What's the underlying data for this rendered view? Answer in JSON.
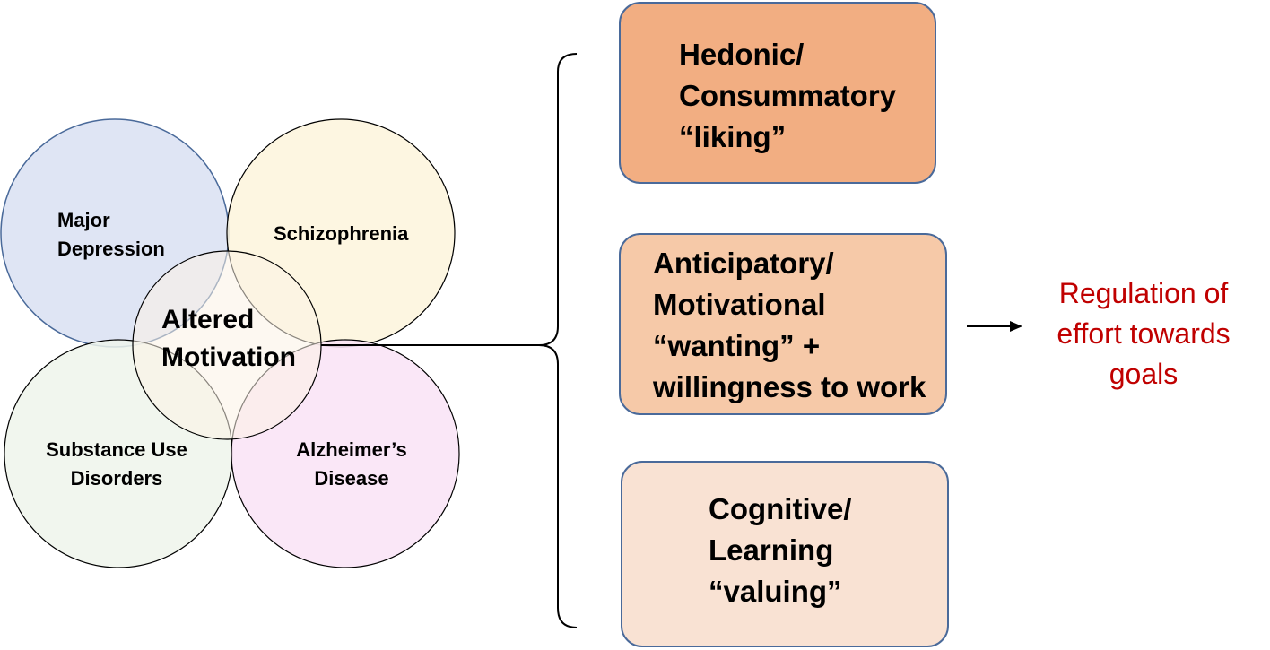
{
  "colors": {
    "major_depression_fill": "#dde4f3",
    "schizophrenia_fill": "#fdf5dc",
    "substance_use_fill": "#eef4eb",
    "alzheimers_fill": "#f9e3f6",
    "center_fill": "#fbf2e6",
    "hedonic_fill": "#f2ae82",
    "anticipatory_fill": "#f6c9a8",
    "cognitive_fill": "#f9e2d3",
    "box_border": "#4a6a9a",
    "outcome_text": "#c00000"
  },
  "circles": {
    "major_depression": "Major\nDepression",
    "schizophrenia": "Schizophrenia",
    "substance_use": "Substance Use\nDisorders",
    "alzheimers": "Alzheimer’s\nDisease",
    "center": "Altered\nMotivation"
  },
  "boxes": {
    "hedonic": "Hedonic/\nConsummatory\n“liking”",
    "anticipatory": "Anticipatory/\nMotivational\n“wanting” +\nwillingness to work",
    "cognitive": "Cognitive/\nLearning\n“valuing”"
  },
  "outcome": "Regulation of\neffort towards\ngoals"
}
